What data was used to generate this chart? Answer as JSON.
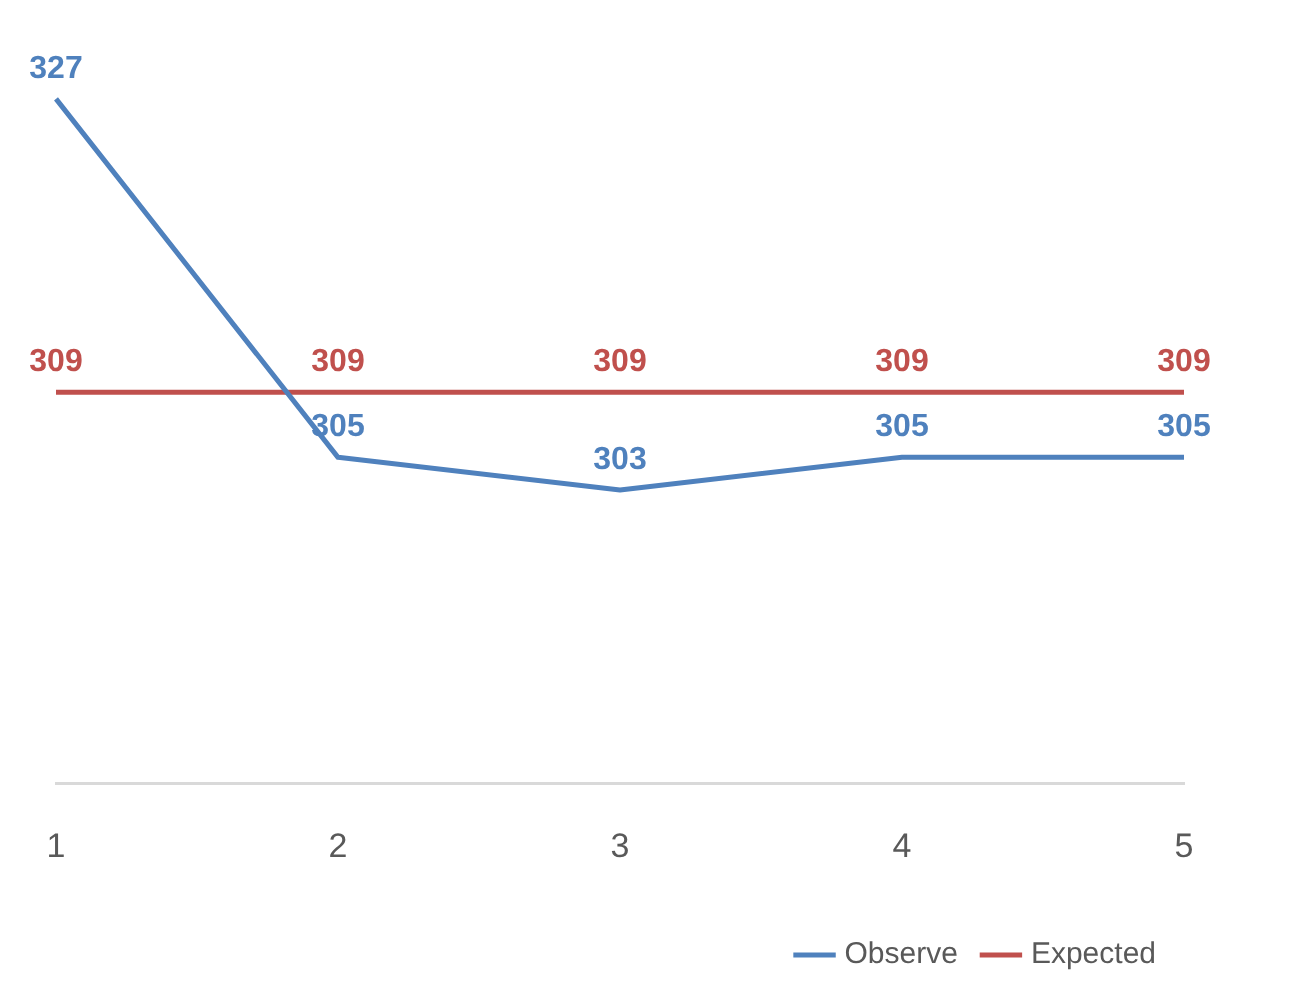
{
  "chart_data": {
    "type": "line",
    "categories": [
      "1",
      "2",
      "3",
      "4",
      "5"
    ],
    "series": [
      {
        "name": "Observe",
        "color": "#4f81bd",
        "values": [
          327,
          305,
          303,
          305,
          305
        ]
      },
      {
        "name": "Expected",
        "color": "#c0504d",
        "values": [
          309,
          309,
          309,
          309,
          309
        ]
      }
    ],
    "data_labels": true,
    "legend": "bottom",
    "marker": "none",
    "line_style": "solid",
    "grid": false,
    "tick_labels": "x"
  }
}
